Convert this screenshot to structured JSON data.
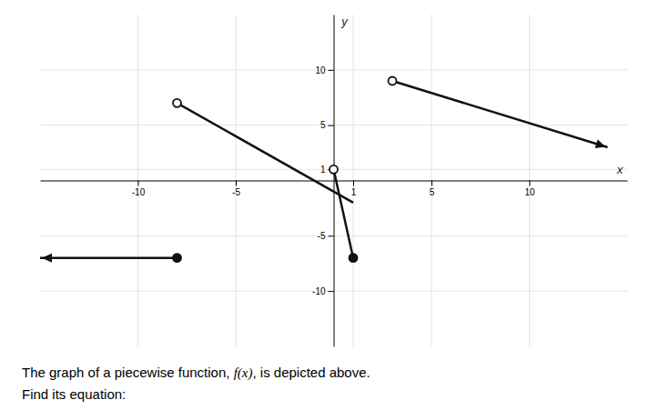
{
  "chart_data": {
    "type": "line",
    "xlim": [
      -15,
      15
    ],
    "ylim": [
      -15,
      15
    ],
    "xticks": [
      -10,
      -5,
      1,
      5,
      10
    ],
    "yticks": [
      -10,
      -5,
      1,
      5,
      10
    ],
    "x_label": "x",
    "y_label": "y",
    "grid": true,
    "series": [
      {
        "type": "line",
        "color": "#111111",
        "x": [
          -8,
          1
        ],
        "values": [
          7,
          -2
        ]
      },
      {
        "type": "line",
        "color": "#111111",
        "marker": "arrow-end",
        "x": [
          3,
          14
        ],
        "values": [
          9,
          3
        ]
      },
      {
        "type": "line",
        "color": "#111111",
        "marker": "arrow-start",
        "x": [
          -15,
          -8
        ],
        "values": [
          -7,
          -7
        ]
      },
      {
        "type": "line",
        "color": "#111111",
        "x": [
          0,
          1
        ],
        "values": [
          1,
          -7
        ]
      },
      {
        "type": "scatter",
        "color": "#111111",
        "marker": "open-circle",
        "x": [
          -8,
          3,
          0
        ],
        "values": [
          7,
          9,
          1
        ]
      },
      {
        "type": "scatter",
        "color": "#111111",
        "marker": "filled-circle",
        "x": [
          -8,
          1
        ],
        "values": [
          -7,
          -7
        ]
      }
    ],
    "annotations": [
      "The graph of a piecewise function, ",
      "f(x)",
      ", is depicted above.",
      "Find its equation:"
    ]
  }
}
